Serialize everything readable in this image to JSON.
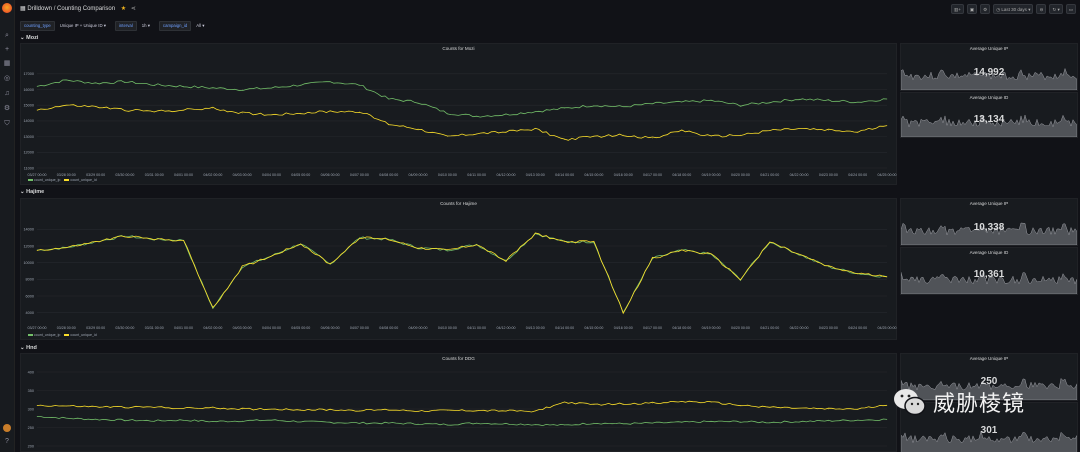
{
  "app": {
    "breadcrumb_folder": "Drilldown",
    "breadcrumb_sep": " / ",
    "breadcrumb_title": "Counting Comparison"
  },
  "toolbar": {
    "time_range": "Last 30 days",
    "zoom_icon": "zoom-out-icon",
    "refresh_icon": "refresh-icon"
  },
  "variables": [
    {
      "label": "counting_type",
      "value": "Unique IP + Unique ID ▾"
    },
    {
      "label": "interval",
      "value": "1h ▾"
    },
    {
      "label": "campaign_id",
      "value": "All ▾"
    }
  ],
  "rows": [
    {
      "title": "⌄ Mozi"
    },
    {
      "title": "⌄ Hajime"
    },
    {
      "title": "⌄ Hnd"
    }
  ],
  "panels": {
    "mozi": {
      "title": "Counts for Mozi"
    },
    "hajime": {
      "title": "Counts for Hajime"
    },
    "ddg": {
      "title": "Counts for DDG"
    }
  },
  "stats": {
    "mozi_ip": {
      "title": "Average Unique IP",
      "value": "14,992"
    },
    "mozi_id": {
      "title": "Average Unique ID",
      "value": "13,134"
    },
    "hajime_ip": {
      "title": "Average Unique IP",
      "value": "10,338"
    },
    "hajime_id": {
      "title": "Average Unique ID",
      "value": "10,361"
    },
    "ddg_ip": {
      "title": "Average Unique IP",
      "value": "250"
    },
    "ddg_id": {
      "title": "",
      "value": "301"
    }
  },
  "legend": {
    "series_ip": "count_unique_ip",
    "series_id": "count_unique_id"
  },
  "colors": {
    "ip": "#73bf69",
    "id": "#fade2a",
    "bg": "#111217",
    "panel": "#181b1f"
  },
  "x_ticks": [
    "03/27 00:00",
    "03/28 00:00",
    "03/29 00:00",
    "03/30 00:00",
    "03/31 00:00",
    "04/01 00:00",
    "04/02 00:00",
    "04/03 00:00",
    "04/04 00:00",
    "04/05 00:00",
    "04/06 00:00",
    "04/07 00:00",
    "04/08 00:00",
    "04/09 00:00",
    "04/10 00:00",
    "04/11 00:00",
    "04/12 00:00",
    "04/13 00:00",
    "04/14 00:00",
    "04/15 00:00",
    "04/16 00:00",
    "04/17 00:00",
    "04/18 00:00",
    "04/19 00:00",
    "04/20 00:00",
    "04/21 00:00",
    "04/22 00:00",
    "04/23 00:00",
    "04/24 00:00",
    "04/25 00:00"
  ],
  "chart_data": [
    {
      "type": "line",
      "title": "Counts for Mozi",
      "ylim": [
        11000,
        17500
      ],
      "yticks": [
        "17000",
        "16000",
        "15000",
        "14000",
        "13000",
        "12000",
        "11000"
      ],
      "series": [
        {
          "name": "count_unique_ip",
          "color": "#73bf69",
          "values": [
            16200,
            16600,
            16400,
            16500,
            16300,
            16200,
            16100,
            16000,
            16100,
            16300,
            16500,
            16300,
            15400,
            15200,
            14500,
            14300,
            14400,
            14600,
            14800,
            15000,
            14900,
            15100,
            15200,
            15300,
            15000,
            15200,
            15400,
            15300,
            15200,
            15400
          ]
        },
        {
          "name": "count_unique_id",
          "color": "#fade2a",
          "values": [
            14700,
            15000,
            14900,
            14700,
            14600,
            14700,
            14800,
            14500,
            14400,
            14500,
            14600,
            14600,
            13800,
            13500,
            13000,
            13200,
            13300,
            13500,
            12800,
            13000,
            13100,
            12900,
            13400,
            13000,
            13100,
            13400,
            13500,
            13400,
            13300,
            13700
          ]
        }
      ]
    },
    {
      "type": "line",
      "title": "Counts for Hajime",
      "ylim": [
        3000,
        15000
      ],
      "yticks": [
        "14000",
        "12000",
        "10000",
        "8000",
        "6000",
        "4000"
      ],
      "series": [
        {
          "name": "count_unique_ip",
          "color": "#73bf69",
          "values": [
            11500,
            11800,
            12500,
            13200,
            12800,
            12700,
            4500,
            9500,
            10800,
            12300,
            9800,
            13000,
            12800,
            11800,
            11500,
            12200,
            10200,
            13500,
            12500,
            12500,
            4000,
            10500,
            11500,
            11000,
            8000,
            12500,
            11000,
            9500,
            8700,
            8300
          ]
        },
        {
          "name": "count_unique_id",
          "color": "#fade2a",
          "values": [
            11500,
            11800,
            12500,
            13200,
            12800,
            12700,
            4500,
            9500,
            10800,
            12300,
            9800,
            13000,
            12800,
            11800,
            11500,
            12200,
            10200,
            13500,
            12500,
            12500,
            4000,
            10500,
            11500,
            11000,
            8000,
            12500,
            11000,
            9500,
            8700,
            8300
          ]
        }
      ]
    },
    {
      "type": "line",
      "title": "Counts for DDG",
      "ylim": [
        200,
        400
      ],
      "yticks": [
        "400",
        "350",
        "300",
        "250",
        "200"
      ],
      "series": [
        {
          "name": "count_unique_ip",
          "color": "#73bf69",
          "values": [
            280,
            275,
            272,
            270,
            268,
            270,
            266,
            268,
            270,
            266,
            264,
            262,
            262,
            260,
            258,
            262,
            260,
            258,
            256,
            262,
            260,
            262,
            264,
            266,
            266,
            264,
            266,
            268,
            270,
            272
          ]
        },
        {
          "name": "count_unique_id",
          "color": "#fade2a",
          "values": [
            310,
            308,
            306,
            305,
            305,
            302,
            303,
            300,
            300,
            298,
            298,
            296,
            298,
            295,
            296,
            296,
            295,
            294,
            318,
            312,
            314,
            316,
            320,
            318,
            310,
            305,
            302,
            300,
            300,
            310
          ]
        }
      ]
    }
  ],
  "watermark": {
    "text": "威胁棱镜"
  }
}
